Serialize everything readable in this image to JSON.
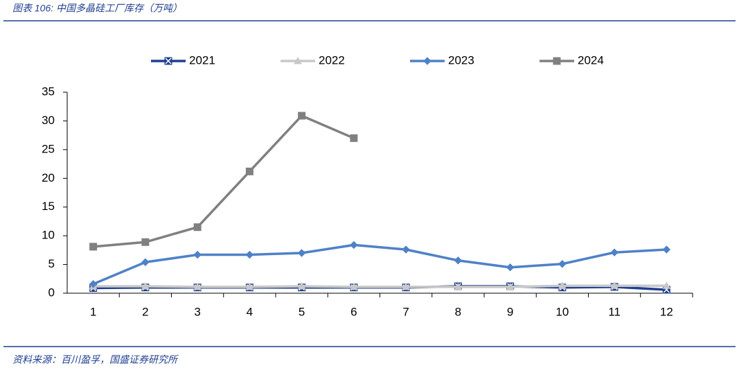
{
  "chart_data": {
    "type": "line",
    "title": "图表 106:  中国多晶硅工厂库存（万吨）",
    "source": "资料来源：百川盈孚，国盛证券研究所",
    "categories": [
      "1",
      "2",
      "3",
      "4",
      "5",
      "6",
      "7",
      "8",
      "9",
      "10",
      "11",
      "12"
    ],
    "series": [
      {
        "name": "2021",
        "color": "#1f3f8f",
        "marker": "xsquare",
        "values": [
          0.9,
          1.0,
          1.0,
          1.0,
          1.0,
          1.0,
          1.0,
          1.2,
          1.2,
          1.0,
          1.1,
          0.6
        ]
      },
      {
        "name": "2022",
        "color": "#c8c8c8",
        "marker": "triangle",
        "values": [
          1.2,
          1.2,
          1.1,
          1.1,
          1.2,
          1.1,
          1.1,
          1.1,
          1.1,
          1.3,
          1.3,
          1.3
        ]
      },
      {
        "name": "2023",
        "color": "#4f81c7",
        "marker": "diamond",
        "values": [
          1.6,
          5.4,
          6.7,
          6.7,
          7.0,
          8.4,
          7.6,
          5.7,
          4.5,
          5.1,
          7.1,
          7.6
        ]
      },
      {
        "name": "2024",
        "color": "#808080",
        "marker": "square",
        "values": [
          8.1,
          8.9,
          11.5,
          21.2,
          30.9,
          27.0,
          null,
          null,
          null,
          null,
          null,
          null
        ]
      }
    ],
    "ylim": [
      0,
      35
    ],
    "yticks": [
      0,
      5,
      10,
      15,
      20,
      25,
      30,
      35
    ],
    "legend": "top",
    "grid": false
  }
}
